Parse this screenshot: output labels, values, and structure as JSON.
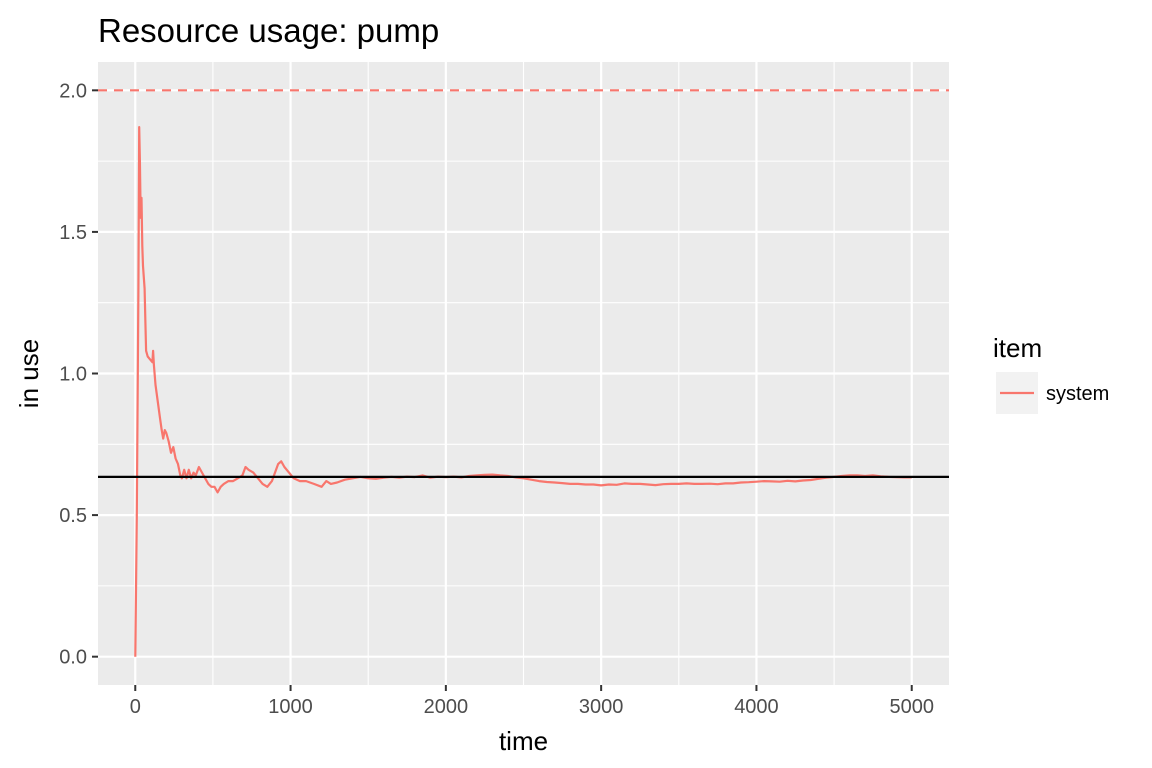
{
  "chart_data": {
    "type": "line",
    "title": "Resource usage: pump",
    "xlabel": "time",
    "ylabel": "in use",
    "xlim": [
      -240,
      5240
    ],
    "ylim": [
      -0.1,
      2.1
    ],
    "x_ticks": [
      0,
      1000,
      2000,
      3000,
      4000,
      5000
    ],
    "x_tick_labels": [
      "0",
      "1000",
      "2000",
      "3000",
      "4000",
      "5000"
    ],
    "y_ticks": [
      0.0,
      0.5,
      1.0,
      1.5,
      2.0
    ],
    "y_tick_labels": [
      "0.0",
      "0.5",
      "1.0",
      "1.5",
      "2.0"
    ],
    "grid": true,
    "legend": {
      "title": "item",
      "position": "right",
      "entries": [
        {
          "label": "system",
          "color": "#F8766D"
        }
      ]
    },
    "capacity_line": {
      "y": 2.0,
      "style": "dashed",
      "color": "#F8766D"
    },
    "mean_line": {
      "y": 0.635,
      "style": "solid",
      "color": "#000000"
    },
    "series": [
      {
        "name": "system",
        "color": "#F8766D",
        "points": [
          [
            0,
            0.0
          ],
          [
            10,
            0.5
          ],
          [
            20,
            1.3
          ],
          [
            25,
            1.87
          ],
          [
            30,
            1.75
          ],
          [
            35,
            1.55
          ],
          [
            40,
            1.62
          ],
          [
            45,
            1.45
          ],
          [
            50,
            1.38
          ],
          [
            60,
            1.3
          ],
          [
            65,
            1.18
          ],
          [
            70,
            1.08
          ],
          [
            80,
            1.06
          ],
          [
            95,
            1.05
          ],
          [
            110,
            1.04
          ],
          [
            115,
            1.08
          ],
          [
            120,
            1.03
          ],
          [
            130,
            0.96
          ],
          [
            145,
            0.9
          ],
          [
            160,
            0.84
          ],
          [
            170,
            0.8
          ],
          [
            180,
            0.77
          ],
          [
            190,
            0.8
          ],
          [
            200,
            0.79
          ],
          [
            215,
            0.76
          ],
          [
            230,
            0.72
          ],
          [
            245,
            0.74
          ],
          [
            260,
            0.7
          ],
          [
            275,
            0.68
          ],
          [
            290,
            0.64
          ],
          [
            300,
            0.63
          ],
          [
            315,
            0.66
          ],
          [
            330,
            0.63
          ],
          [
            345,
            0.66
          ],
          [
            360,
            0.63
          ],
          [
            375,
            0.65
          ],
          [
            390,
            0.64
          ],
          [
            410,
            0.67
          ],
          [
            430,
            0.65
          ],
          [
            450,
            0.63
          ],
          [
            470,
            0.61
          ],
          [
            490,
            0.6
          ],
          [
            510,
            0.6
          ],
          [
            530,
            0.58
          ],
          [
            550,
            0.6
          ],
          [
            570,
            0.61
          ],
          [
            600,
            0.62
          ],
          [
            630,
            0.62
          ],
          [
            660,
            0.63
          ],
          [
            690,
            0.64
          ],
          [
            710,
            0.67
          ],
          [
            730,
            0.66
          ],
          [
            760,
            0.65
          ],
          [
            790,
            0.63
          ],
          [
            820,
            0.61
          ],
          [
            850,
            0.6
          ],
          [
            880,
            0.62
          ],
          [
            900,
            0.65
          ],
          [
            920,
            0.68
          ],
          [
            940,
            0.69
          ],
          [
            960,
            0.67
          ],
          [
            990,
            0.65
          ],
          [
            1020,
            0.63
          ],
          [
            1060,
            0.62
          ],
          [
            1100,
            0.62
          ],
          [
            1150,
            0.61
          ],
          [
            1200,
            0.6
          ],
          [
            1230,
            0.62
          ],
          [
            1260,
            0.61
          ],
          [
            1300,
            0.615
          ],
          [
            1350,
            0.625
          ],
          [
            1400,
            0.63
          ],
          [
            1450,
            0.635
          ],
          [
            1500,
            0.63
          ],
          [
            1550,
            0.628
          ],
          [
            1600,
            0.632
          ],
          [
            1650,
            0.635
          ],
          [
            1700,
            0.632
          ],
          [
            1750,
            0.636
          ],
          [
            1800,
            0.634
          ],
          [
            1850,
            0.64
          ],
          [
            1900,
            0.632
          ],
          [
            1950,
            0.636
          ],
          [
            2000,
            0.634
          ],
          [
            2050,
            0.636
          ],
          [
            2100,
            0.633
          ],
          [
            2150,
            0.638
          ],
          [
            2200,
            0.64
          ],
          [
            2250,
            0.642
          ],
          [
            2300,
            0.643
          ],
          [
            2350,
            0.64
          ],
          [
            2400,
            0.638
          ],
          [
            2450,
            0.633
          ],
          [
            2500,
            0.63
          ],
          [
            2550,
            0.625
          ],
          [
            2600,
            0.62
          ],
          [
            2650,
            0.617
          ],
          [
            2700,
            0.615
          ],
          [
            2750,
            0.613
          ],
          [
            2800,
            0.61
          ],
          [
            2850,
            0.61
          ],
          [
            2900,
            0.608
          ],
          [
            2950,
            0.608
          ],
          [
            3000,
            0.605
          ],
          [
            3050,
            0.608
          ],
          [
            3100,
            0.607
          ],
          [
            3150,
            0.612
          ],
          [
            3200,
            0.61
          ],
          [
            3250,
            0.61
          ],
          [
            3300,
            0.608
          ],
          [
            3350,
            0.606
          ],
          [
            3400,
            0.609
          ],
          [
            3450,
            0.61
          ],
          [
            3500,
            0.61
          ],
          [
            3550,
            0.612
          ],
          [
            3600,
            0.61
          ],
          [
            3650,
            0.61
          ],
          [
            3700,
            0.611
          ],
          [
            3750,
            0.609
          ],
          [
            3800,
            0.612
          ],
          [
            3850,
            0.612
          ],
          [
            3900,
            0.615
          ],
          [
            3950,
            0.616
          ],
          [
            4000,
            0.618
          ],
          [
            4050,
            0.62
          ],
          [
            4100,
            0.619
          ],
          [
            4150,
            0.618
          ],
          [
            4200,
            0.621
          ],
          [
            4250,
            0.619
          ],
          [
            4300,
            0.622
          ],
          [
            4350,
            0.624
          ],
          [
            4400,
            0.628
          ],
          [
            4450,
            0.632
          ],
          [
            4500,
            0.635
          ],
          [
            4550,
            0.638
          ],
          [
            4600,
            0.64
          ],
          [
            4650,
            0.64
          ],
          [
            4700,
            0.638
          ],
          [
            4750,
            0.64
          ],
          [
            4800,
            0.637
          ],
          [
            4850,
            0.635
          ],
          [
            4900,
            0.634
          ],
          [
            4950,
            0.633
          ],
          [
            5000,
            0.633
          ]
        ]
      }
    ]
  }
}
